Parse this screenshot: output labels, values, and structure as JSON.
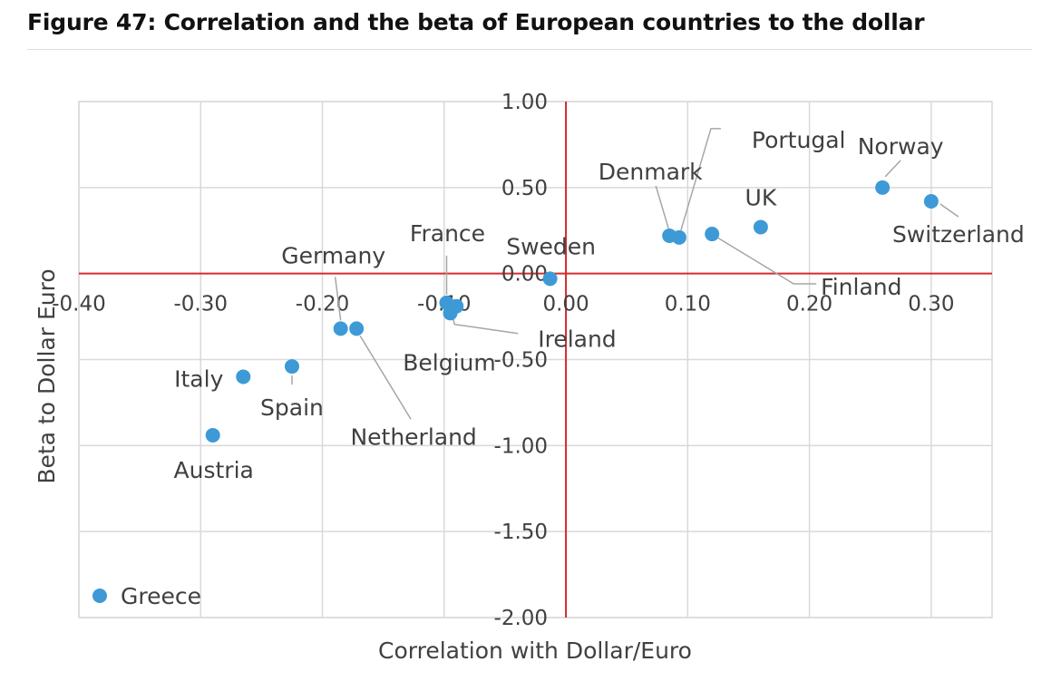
{
  "figure": {
    "title": "Figure 47: Correlation and the beta of European countries to the dollar"
  },
  "colors": {
    "point": "#3d9ad6",
    "axis_zero": "#d62b2b",
    "grid": "#d9d9d9",
    "leader": "#a6a6a6",
    "text": "#404040"
  },
  "chart_data": {
    "type": "scatter",
    "title": "Correlation and the beta of European countries to the dollar",
    "xlabel": "Correlation with Dollar/Euro",
    "ylabel": "Beta to Dollar Euro",
    "xlim": [
      -0.4,
      0.35
    ],
    "ylim": [
      -2.0,
      1.0
    ],
    "xticks": [
      -0.4,
      -0.3,
      -0.2,
      -0.1,
      0.0,
      0.1,
      0.2,
      0.3
    ],
    "xtick_labels": [
      "-0.40",
      "-0.30",
      "-0.20",
      "-0.10",
      "0.00",
      "0.10",
      "0.20",
      "0.30"
    ],
    "yticks": [
      1.0,
      0.5,
      0.0,
      -0.5,
      -1.0,
      -1.5,
      -2.0
    ],
    "ytick_labels": [
      "1.00",
      "0.50",
      "0.00",
      "-0.50",
      "-1.00",
      "-1.50",
      "-2.00"
    ],
    "grid": true,
    "legend": {
      "position": "bottom-left",
      "entries": [
        "Greece"
      ]
    },
    "points": [
      {
        "label": "Norway",
        "x": 0.26,
        "y": 0.5
      },
      {
        "label": "Switzerland",
        "x": 0.3,
        "y": 0.42
      },
      {
        "label": "UK",
        "x": 0.16,
        "y": 0.27
      },
      {
        "label": "Finland",
        "x": 0.12,
        "y": 0.23
      },
      {
        "label": "Denmark",
        "x": 0.085,
        "y": 0.22
      },
      {
        "label": "Portugal",
        "x": 0.093,
        "y": 0.21
      },
      {
        "label": "Sweden",
        "x": -0.013,
        "y": -0.03
      },
      {
        "label": "France",
        "x": -0.098,
        "y": -0.17
      },
      {
        "label": "Ireland",
        "x": -0.09,
        "y": -0.19
      },
      {
        "label": "Belgium",
        "x": -0.095,
        "y": -0.23
      },
      {
        "label": "Germany",
        "x": -0.185,
        "y": -0.32
      },
      {
        "label": "Netherland",
        "x": -0.172,
        "y": -0.32
      },
      {
        "label": "Spain",
        "x": -0.225,
        "y": -0.54
      },
      {
        "label": "Italy",
        "x": -0.265,
        "y": -0.6
      },
      {
        "label": "Austria",
        "x": -0.29,
        "y": -0.94
      }
    ]
  }
}
